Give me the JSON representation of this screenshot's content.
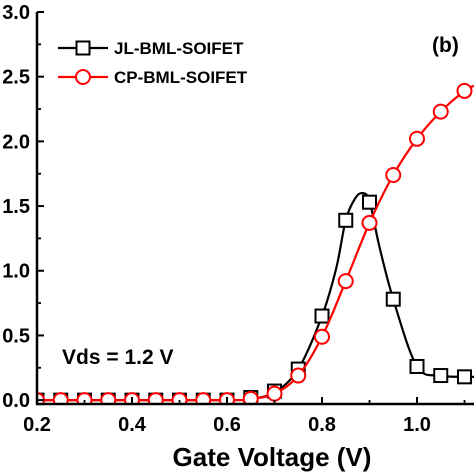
{
  "chart_data": {
    "type": "line",
    "panel_label": "(b)",
    "annotation": "Vds = 1.2 V",
    "xlabel": "Gate Voltage (V)",
    "ylabel": "",
    "xlim": [
      0.2,
      1.12
    ],
    "ylim": [
      -0.03,
      3.0
    ],
    "x_ticks": [
      0.2,
      0.4,
      0.6,
      0.8,
      1.0
    ],
    "x_tick_labels": [
      "0.2",
      "0.4",
      "0.6",
      "0.8",
      "1.0"
    ],
    "y_ticks": [
      0.0,
      0.5,
      1.0,
      1.5,
      2.0,
      2.5,
      3.0
    ],
    "y_tick_labels": [
      "0.0",
      "0.5",
      "1.0",
      "1.5",
      "2.0",
      "2.5",
      "3.0"
    ],
    "legend_position": "top-left",
    "series": [
      {
        "name": "JL-BML-SOIFET",
        "color": "#000000",
        "marker": "square",
        "curve_x": [
          0.2,
          0.6,
          0.65,
          0.7,
          0.75,
          0.8,
          0.83,
          0.85,
          0.87,
          0.885,
          0.9,
          0.92,
          0.95,
          1.0,
          1.05,
          1.1,
          1.12
        ],
        "curve_y": [
          0.0,
          0.0,
          0.01,
          0.06,
          0.24,
          0.65,
          1.02,
          1.39,
          1.56,
          1.6,
          1.54,
          1.2,
          0.78,
          0.26,
          0.19,
          0.18,
          0.18
        ],
        "x": [
          0.2,
          0.25,
          0.3,
          0.35,
          0.4,
          0.45,
          0.5,
          0.55,
          0.6,
          0.65,
          0.7,
          0.75,
          0.8,
          0.85,
          0.9,
          0.95,
          1.0,
          1.05,
          1.1
        ],
        "y": [
          0.0,
          0.0,
          0.0,
          0.0,
          0.0,
          0.0,
          0.0,
          0.0,
          0.0,
          0.02,
          0.07,
          0.24,
          0.65,
          1.39,
          1.53,
          0.78,
          0.26,
          0.19,
          0.18
        ]
      },
      {
        "name": "CP-BML-SOIFET",
        "color": "#ff0000",
        "marker": "circle",
        "curve_x": [
          0.2,
          0.6,
          0.65,
          0.7,
          0.75,
          0.8,
          0.85,
          0.9,
          0.95,
          1.0,
          1.05,
          1.1,
          1.12
        ],
        "curve_y": [
          0.0,
          0.0,
          0.01,
          0.05,
          0.19,
          0.49,
          0.92,
          1.37,
          1.74,
          2.02,
          2.23,
          2.39,
          2.43
        ],
        "x": [
          0.2,
          0.25,
          0.3,
          0.35,
          0.4,
          0.45,
          0.5,
          0.55,
          0.6,
          0.65,
          0.7,
          0.75,
          0.8,
          0.85,
          0.9,
          0.95,
          1.0,
          1.05,
          1.1
        ],
        "y": [
          0.0,
          0.0,
          0.0,
          0.0,
          0.0,
          0.0,
          0.0,
          0.0,
          0.0,
          0.01,
          0.05,
          0.19,
          0.49,
          0.92,
          1.37,
          1.74,
          2.02,
          2.23,
          2.39
        ]
      }
    ]
  }
}
